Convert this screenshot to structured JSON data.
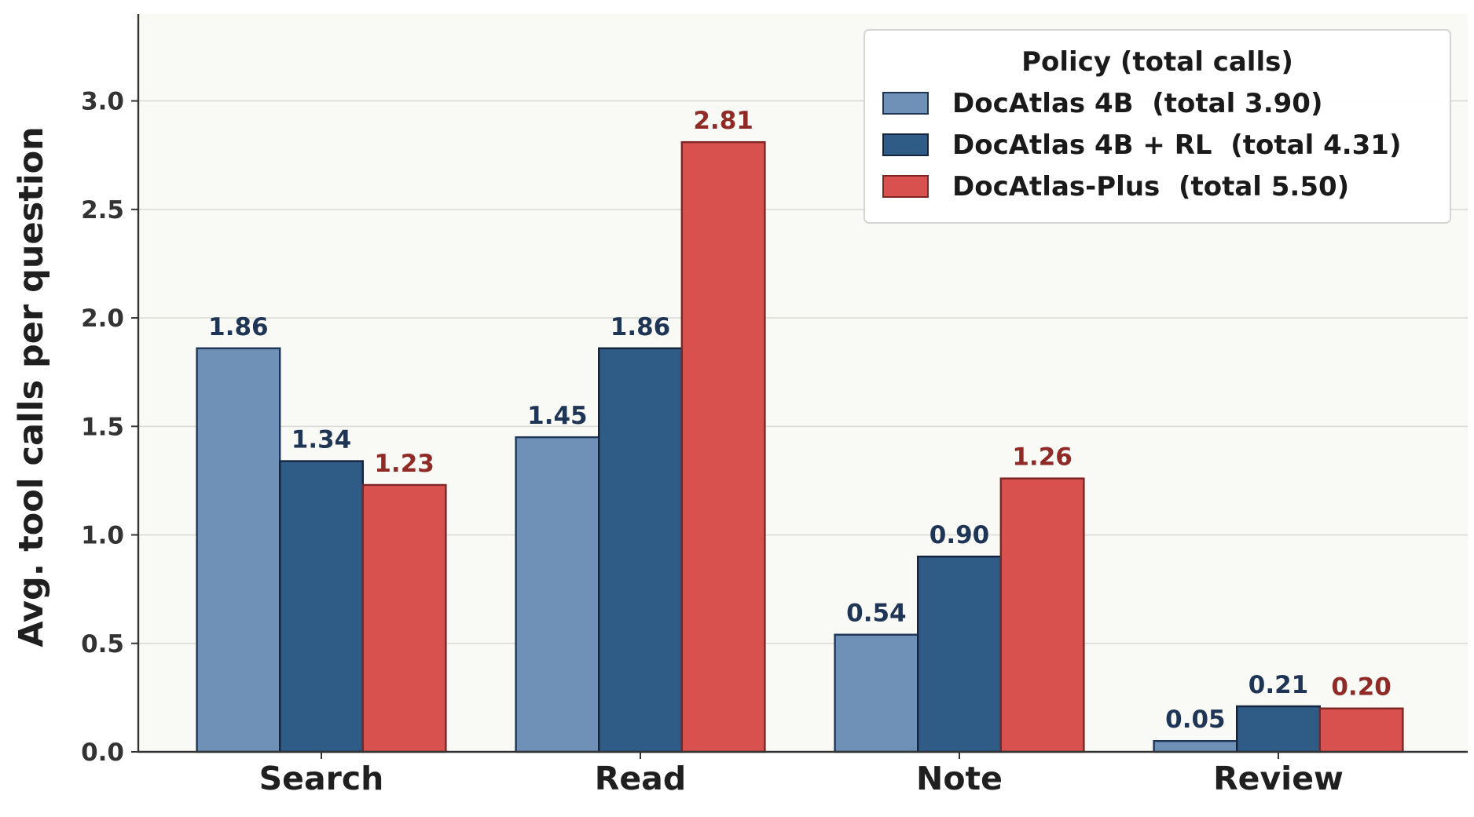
{
  "chart_data": {
    "type": "bar",
    "categories": [
      "Search",
      "Read",
      "Note",
      "Review"
    ],
    "series": [
      {
        "name": "DocAtlas 4B  (total 3.90)",
        "values": [
          1.86,
          1.45,
          0.54,
          0.05
        ],
        "value_labels": [
          "1.86",
          "1.45",
          "0.54",
          "0.05"
        ],
        "color": "#6f91b8",
        "edge_color": "#1f3556",
        "label_color": "#1f3556"
      },
      {
        "name": "DocAtlas 4B + RL  (total 4.31)",
        "values": [
          1.34,
          1.86,
          0.9,
          0.21
        ],
        "value_labels": [
          "1.34",
          "1.86",
          "0.90",
          "0.21"
        ],
        "color": "#2f5b87",
        "edge_color": "#13243c",
        "label_color": "#1f3556"
      },
      {
        "name": "DocAtlas-Plus  (total 5.50)",
        "values": [
          1.23,
          2.81,
          1.26,
          0.2
        ],
        "value_labels": [
          "1.23",
          "2.81",
          "1.26",
          "0.20"
        ],
        "color": "#d9514e",
        "edge_color": "#7e2523",
        "label_color": "#8f2a27"
      }
    ],
    "title": "",
    "xlabel": "",
    "ylabel": "Avg. tool calls per question",
    "ylim": [
      0,
      3.4
    ],
    "yticks": [
      "0.0",
      "0.5",
      "1.0",
      "1.5",
      "2.0",
      "2.5",
      "3.0"
    ],
    "grid": "horizontal",
    "legend": {
      "title": "Policy  (total calls)",
      "placement": "top-right"
    },
    "plot_background": "#f9f9f6"
  }
}
